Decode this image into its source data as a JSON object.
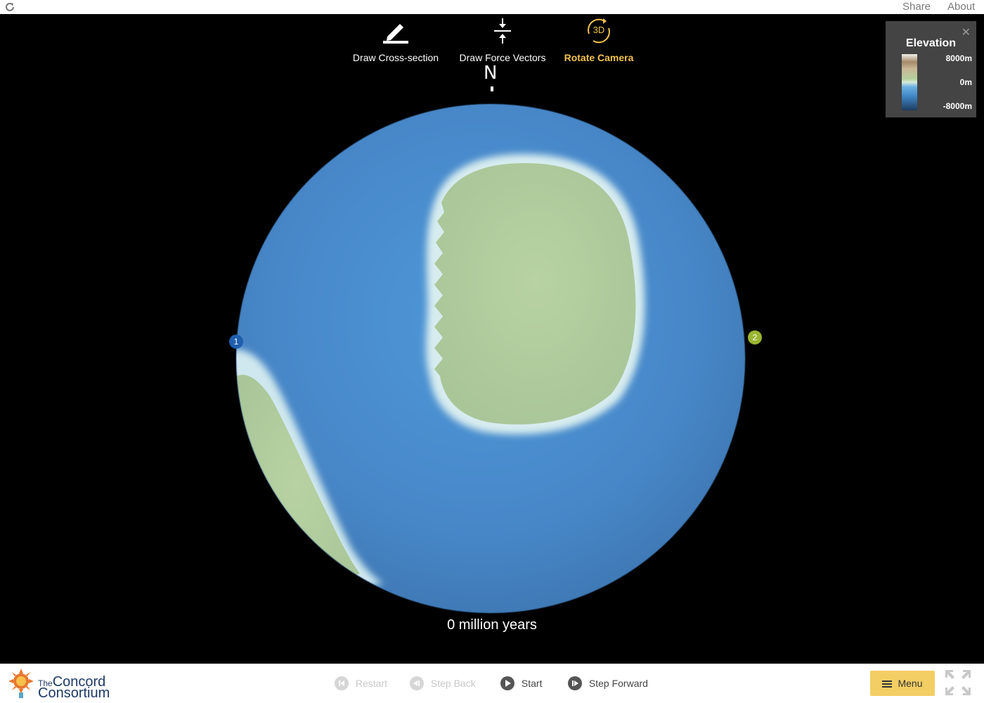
{
  "topbar": {
    "share_label": "Share",
    "about_label": "About"
  },
  "tools": {
    "cross_section_label": "Draw Cross-section",
    "force_vectors_label": "Draw Force Vectors",
    "rotate_camera_label": "Rotate Camera",
    "rotate_camera_badge": "3D"
  },
  "compass": {
    "north_label": "N"
  },
  "legend": {
    "title": "Elevation",
    "max_label": "8000m",
    "zero_label": "0m",
    "min_label": "-8000m",
    "close_icon": "close-icon"
  },
  "markers": {
    "marker_1": "1",
    "marker_2": "2"
  },
  "time": {
    "readout": "0 million years"
  },
  "footer": {
    "logo_line1_small": "The",
    "logo_line1": "Concord",
    "logo_line2": "Consortium",
    "restart_label": "Restart",
    "step_back_label": "Step Back",
    "start_label": "Start",
    "step_forward_label": "Step Forward",
    "menu_label": "Menu"
  },
  "colors": {
    "ocean": "#4a8fd0",
    "continent": "#b6cfa0",
    "accent": "#f3c24e",
    "marker_1": "#1f5faf",
    "marker_2": "#9ab531"
  }
}
